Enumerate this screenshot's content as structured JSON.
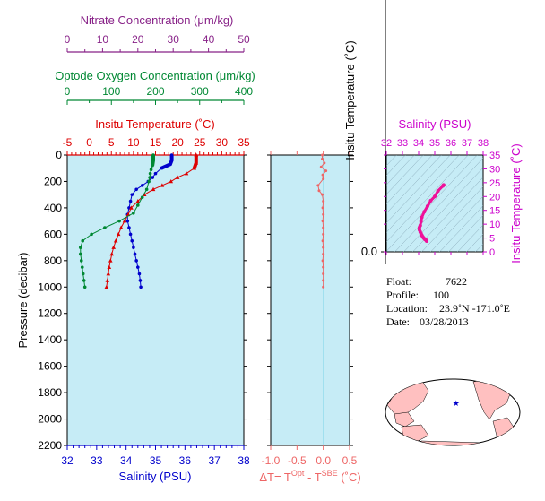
{
  "chart_data": [
    {
      "type": "line",
      "panel": "profiles",
      "ylabel": "Pressure (decibar)",
      "y_ticks": [
        0,
        200,
        400,
        600,
        800,
        1000,
        1200,
        1400,
        1600,
        1800,
        2000,
        2200
      ],
      "ylim": [
        2200,
        0
      ],
      "axes": {
        "salinity": {
          "label": "Salinity (PSU)",
          "ticks": [
            32,
            33,
            34,
            35,
            36,
            37,
            38
          ],
          "range": [
            32,
            38
          ],
          "color": "#0000cc"
        },
        "temperature": {
          "label": "Insitu Temperature (˚C)",
          "ticks": [
            -5,
            0,
            5,
            10,
            15,
            20,
            25,
            30,
            35
          ],
          "range": [
            -5,
            35
          ],
          "color": "#dd0000"
        },
        "oxygen": {
          "label": "Optode Oxygen Concentration (μm/kg)",
          "ticks": [
            0,
            100,
            200,
            300,
            400
          ],
          "range": [
            0,
            400
          ],
          "color": "#008833"
        },
        "nitrate": {
          "label": "Nitrate Concentration (μm/kg)",
          "ticks": [
            0,
            10,
            20,
            30,
            40,
            50
          ],
          "range": [
            0,
            50
          ],
          "color": "#882288"
        }
      },
      "series": [
        {
          "name": "Salinity (PSU)",
          "axis": "salinity",
          "color": "#0000cc",
          "points": [
            [
              35.55,
              0
            ],
            [
              35.55,
              40
            ],
            [
              35.5,
              70
            ],
            [
              35.2,
              100
            ],
            [
              35.0,
              140
            ],
            [
              34.9,
              170
            ],
            [
              34.75,
              200
            ],
            [
              34.55,
              230
            ],
            [
              34.35,
              260
            ],
            [
              34.2,
              300
            ],
            [
              34.15,
              350
            ],
            [
              34.1,
              400
            ],
            [
              34.05,
              450
            ],
            [
              34.05,
              500
            ],
            [
              34.1,
              550
            ],
            [
              34.15,
              600
            ],
            [
              34.2,
              650
            ],
            [
              34.25,
              700
            ],
            [
              34.3,
              750
            ],
            [
              34.35,
              800
            ],
            [
              34.4,
              850
            ],
            [
              34.45,
              900
            ],
            [
              34.48,
              950
            ],
            [
              34.5,
              1000
            ]
          ]
        },
        {
          "name": "Insitu Temperature",
          "axis": "temperature",
          "color": "#dd0000",
          "points": [
            [
              24.2,
              0
            ],
            [
              24.2,
              60
            ],
            [
              23.8,
              100
            ],
            [
              22.0,
              140
            ],
            [
              20.0,
              170
            ],
            [
              18.5,
              200
            ],
            [
              16.5,
              230
            ],
            [
              14.5,
              260
            ],
            [
              12.5,
              300
            ],
            [
              11.0,
              350
            ],
            [
              9.5,
              400
            ],
            [
              8.8,
              450
            ],
            [
              8.0,
              500
            ],
            [
              7.2,
              550
            ],
            [
              6.6,
              600
            ],
            [
              6.0,
              650
            ],
            [
              5.5,
              700
            ],
            [
              5.1,
              750
            ],
            [
              4.8,
              800
            ],
            [
              4.5,
              850
            ],
            [
              4.3,
              900
            ],
            [
              4.1,
              950
            ],
            [
              3.9,
              1000
            ]
          ]
        },
        {
          "name": "Optode Oxygen Concentration",
          "axis": "oxygen",
          "color": "#008833",
          "points": [
            [
              195,
              0
            ],
            [
              195,
              40
            ],
            [
              193,
              80
            ],
            [
              190,
              110
            ],
            [
              188,
              140
            ],
            [
              187,
              170
            ],
            [
              185,
              200
            ],
            [
              180,
              260
            ],
            [
              170,
              320
            ],
            [
              160,
              380
            ],
            [
              150,
              440
            ],
            [
              118,
              500
            ],
            [
              85,
              550
            ],
            [
              55,
              600
            ],
            [
              35,
              650
            ],
            [
              30,
              700
            ],
            [
              30,
              750
            ],
            [
              32,
              800
            ],
            [
              34,
              850
            ],
            [
              36,
              900
            ],
            [
              38,
              950
            ],
            [
              40,
              1000
            ]
          ]
        }
      ]
    },
    {
      "type": "scatter",
      "panel": "delta-T",
      "xlabel": "ΔT= T^Opt - T^SBE (˚C)",
      "xlabel_main": "ΔT= T",
      "xlabel_sup1": "Opt",
      "xlabel_mid": " - T",
      "xlabel_sup2": "SBE",
      "xlabel_tail": " (˚C)",
      "x_ticks": [
        "-1.0",
        "-0.5",
        "0.0",
        "0.5"
      ],
      "xlim": [
        -1.0,
        0.5
      ],
      "color": "#ee6666",
      "points": [
        [
          -0.02,
          0
        ],
        [
          -0.02,
          30
        ],
        [
          0.02,
          60
        ],
        [
          -0.04,
          90
        ],
        [
          0.05,
          120
        ],
        [
          -0.01,
          150
        ],
        [
          0.0,
          180
        ],
        [
          -0.1,
          230
        ],
        [
          -0.08,
          270
        ],
        [
          -0.02,
          300
        ],
        [
          0.0,
          350
        ],
        [
          -0.01,
          400
        ],
        [
          0.0,
          450
        ],
        [
          -0.01,
          500
        ],
        [
          0.0,
          550
        ],
        [
          0.0,
          600
        ],
        [
          -0.01,
          650
        ],
        [
          0.0,
          700
        ],
        [
          0.0,
          750
        ],
        [
          -0.01,
          800
        ],
        [
          0.0,
          850
        ],
        [
          0.0,
          900
        ],
        [
          0.0,
          950
        ],
        [
          0.0,
          1000
        ]
      ]
    },
    {
      "type": "line",
      "panel": "axis-fragment",
      "ylabel": "Insitu Temperature (˚C)",
      "y_ticks": [
        "0.0"
      ]
    },
    {
      "type": "scatter",
      "panel": "T-S",
      "title": "Salinity (PSU)",
      "xlabel": "Salinity (PSU)",
      "ylabel": "Insitu Temperature (˚C)",
      "x_ticks": [
        32,
        33,
        34,
        35,
        36,
        37,
        38
      ],
      "y_ticks": [
        0,
        5,
        10,
        15,
        20,
        25,
        30,
        35
      ],
      "xlim": [
        32,
        38
      ],
      "ylim": [
        0,
        35
      ],
      "color": "#ee1199",
      "points": [
        [
          35.55,
          24.2
        ],
        [
          35.5,
          23.8
        ],
        [
          35.2,
          22.0
        ],
        [
          35.0,
          20.0
        ],
        [
          34.75,
          18.5
        ],
        [
          34.55,
          16.5
        ],
        [
          34.35,
          14.5
        ],
        [
          34.2,
          12.5
        ],
        [
          34.15,
          11.0
        ],
        [
          34.1,
          9.5
        ],
        [
          34.05,
          8.8
        ],
        [
          34.05,
          8.0
        ],
        [
          34.1,
          7.2
        ],
        [
          34.15,
          6.6
        ],
        [
          34.2,
          6.0
        ],
        [
          34.25,
          5.5
        ],
        [
          34.3,
          5.1
        ],
        [
          34.35,
          4.8
        ],
        [
          34.4,
          4.5
        ],
        [
          34.45,
          4.3
        ],
        [
          34.48,
          4.1
        ],
        [
          34.5,
          3.9
        ]
      ]
    }
  ],
  "info": {
    "float_label": "Float:",
    "float_value": "7622",
    "profile_label": "Profile:",
    "profile_value": "100",
    "location_label": "Location:",
    "location_value": "23.9˚N  -171.0˚E",
    "date_label": "Date:",
    "date_value": "03/28/2013"
  },
  "map": {
    "marker_lat": 23.9,
    "marker_lon": -171.0,
    "marker_color": "#0000cc",
    "land_color": "#ffc0c0",
    "ocean_color": "#ffffff"
  },
  "colors": {
    "plot_bg": "#c6ecf6",
    "salinity": "#0000cc",
    "temperature": "#dd0000",
    "oxygen": "#008833",
    "nitrate": "#882288",
    "delta": "#ee6666",
    "ts": "#ee1199"
  }
}
